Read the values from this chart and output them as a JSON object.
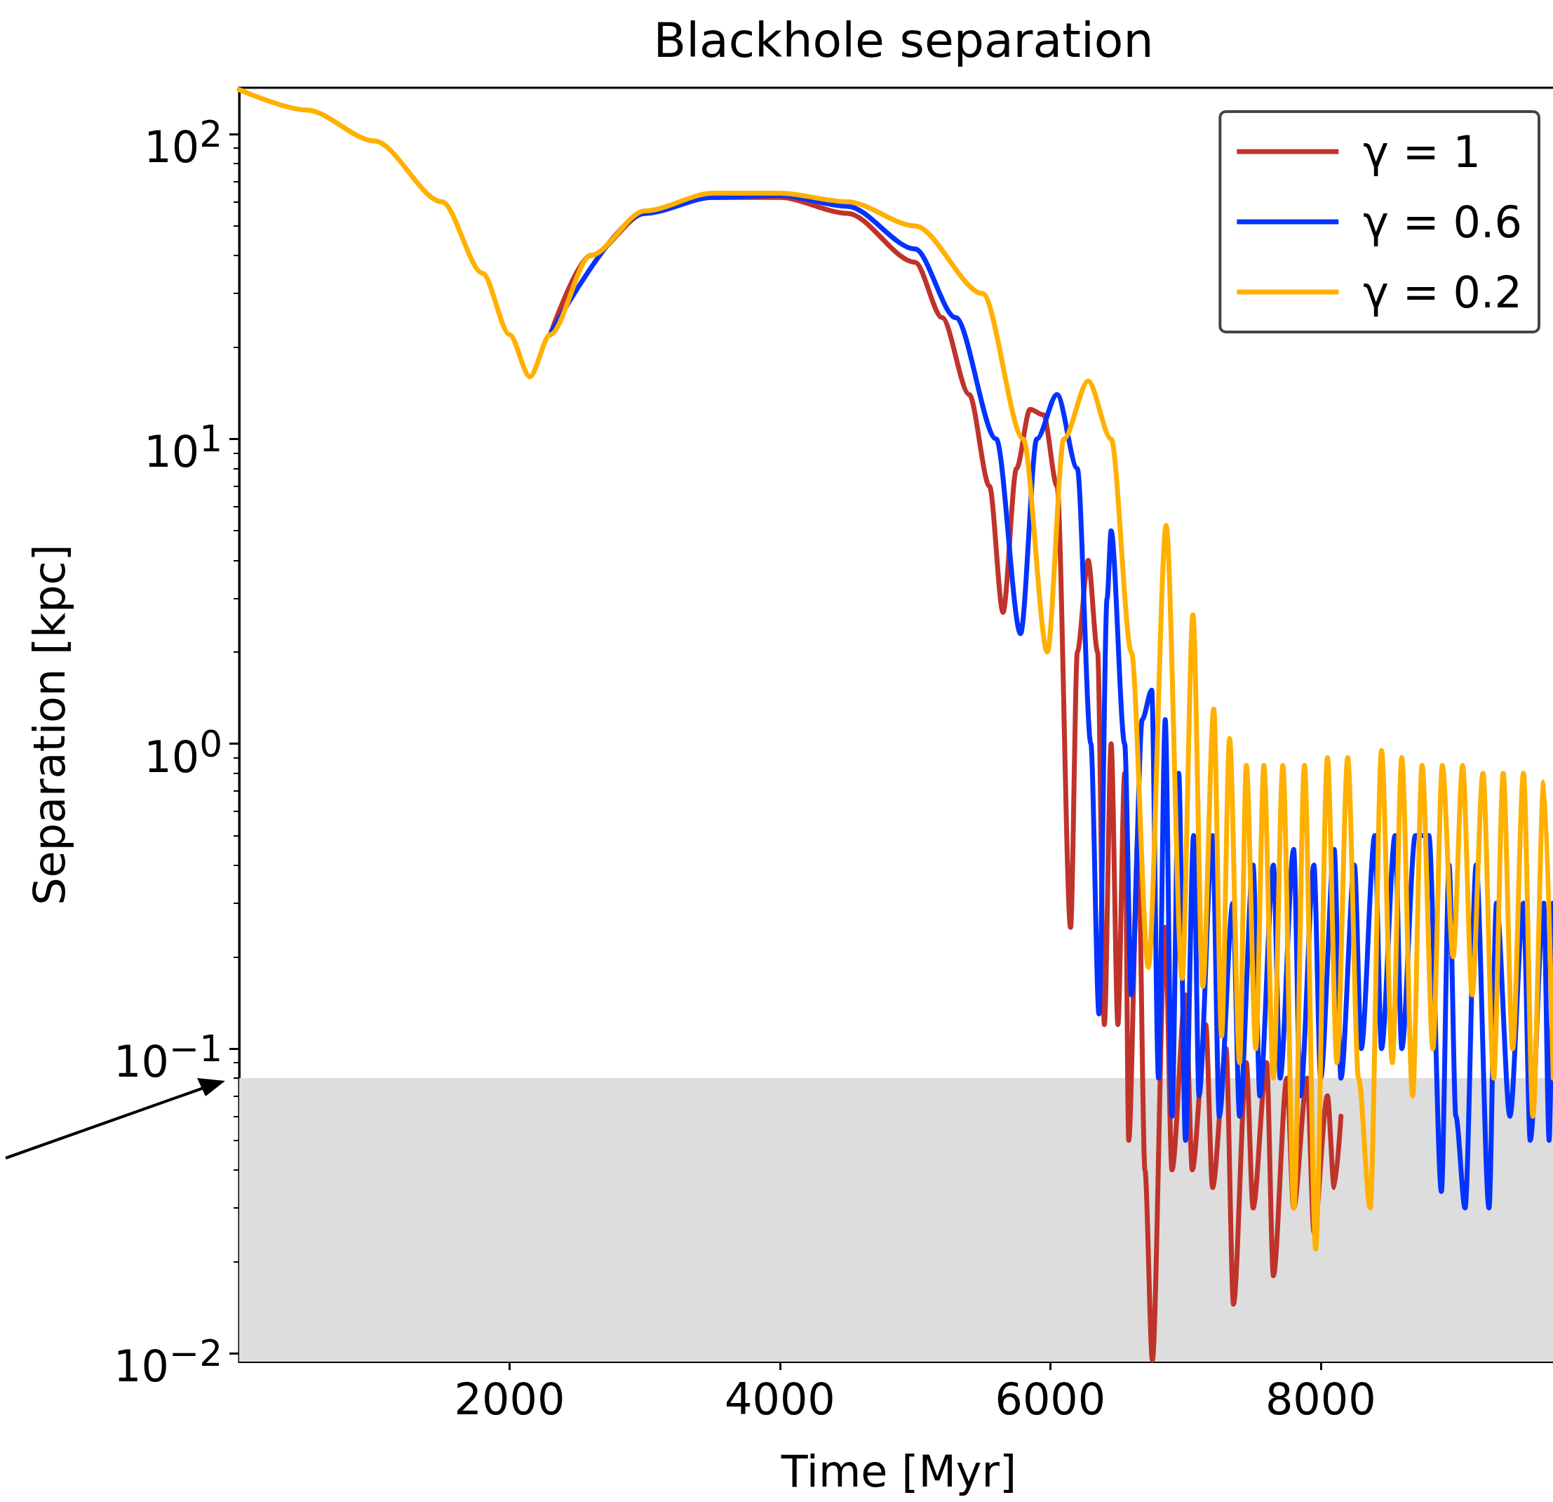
{
  "chart_data": {
    "type": "line",
    "title": "Blackhole separation",
    "xlabel": "Time [Myr]",
    "ylabel": "Separation [kpc]",
    "log": "y",
    "grid": false,
    "legend": "top right",
    "marker": "none",
    "line_style": "solid",
    "xlim": [
      0,
      9760
    ],
    "xticks": [
      2000,
      4000,
      6000,
      8000
    ],
    "ylim": [
      0.0094,
      142
    ],
    "yticks": [
      {
        "value": 0.01,
        "label": "10$^{−2}$"
      },
      {
        "value": 0.1,
        "label": "10$^{−1}$"
      },
      {
        "value": 1,
        "label": "10$^{0}$"
      },
      {
        "value": 10,
        "label": "10$^{1}$"
      },
      {
        "value": 100,
        "label": "10$^{2}$"
      }
    ],
    "bands": [
      {
        "axis": "y",
        "from": 0.0094,
        "to": 0.08,
        "color": "#dddddd"
      }
    ],
    "series": [
      {
        "name": "γ = 1",
        "color": "#c0332b",
        "x": [
          2300,
          2600,
          3000,
          3500,
          4000,
          4500,
          5000,
          5200,
          5400,
          5550,
          5650,
          5750,
          5850,
          5950,
          6050,
          6150,
          6200,
          6280,
          6350,
          6400,
          6450,
          6500,
          6550,
          6580,
          6650,
          6700,
          6755,
          6850,
          6900,
          7000,
          7050,
          7150,
          7200,
          7300,
          7355,
          7450,
          7500,
          7600,
          7650,
          7750,
          7800,
          7900,
          7950,
          8050,
          8100,
          8150
        ],
        "values": [
          22,
          40,
          55,
          62,
          62,
          55,
          38,
          25,
          14,
          7,
          2.7,
          8,
          12.5,
          12,
          7,
          0.25,
          2,
          4,
          2,
          0.12,
          1,
          0.12,
          0.8,
          0.05,
          0.5,
          0.04,
          0.0095,
          0.25,
          0.04,
          0.15,
          0.04,
          0.12,
          0.035,
          0.1,
          0.0145,
          0.09,
          0.03,
          0.09,
          0.018,
          0.08,
          0.03,
          0.08,
          0.025,
          0.07,
          0.035,
          0.06
        ]
      },
      {
        "name": "γ = 0.6",
        "color": "#0433ff",
        "x": [
          2300,
          3000,
          3500,
          4000,
          4500,
          5000,
          5300,
          5600,
          5780,
          5900,
          6050,
          6200,
          6300,
          6360,
          6420,
          6450,
          6550,
          6600,
          6680,
          6750,
          6800,
          6850,
          6900,
          6950,
          7000,
          7060,
          7100,
          7200,
          7250,
          7350,
          7400,
          7500,
          7550,
          7650,
          7700,
          7800,
          7850,
          7950,
          8000,
          8100,
          8150,
          8250,
          8300,
          8400,
          8450,
          8550,
          8600,
          8700,
          8800,
          8893,
          8950,
          9000,
          9068,
          9150,
          9245,
          9300,
          9400,
          9500,
          9550,
          9650,
          9690,
          9720
        ],
        "values": [
          22,
          55,
          62,
          63,
          58,
          42,
          25,
          10,
          2.3,
          10,
          14,
          8,
          1,
          0.13,
          3,
          5,
          1,
          0.15,
          1.2,
          1.5,
          0.08,
          1.2,
          0.06,
          0.8,
          0.05,
          0.5,
          0.07,
          0.5,
          0.06,
          0.3,
          0.06,
          0.4,
          0.07,
          0.4,
          0.08,
          0.45,
          0.07,
          0.4,
          0.08,
          0.45,
          0.08,
          0.4,
          0.1,
          0.5,
          0.1,
          0.5,
          0.1,
          0.5,
          0.5,
          0.034,
          0.4,
          0.06,
          0.03,
          0.4,
          0.03,
          0.3,
          0.06,
          0.3,
          0.05,
          0.3,
          0.05,
          0.3
        ]
      },
      {
        "name": "γ = 0.2",
        "color": "#ffb000",
        "x": [
          0,
          500,
          1000,
          1500,
          1800,
          2000,
          2150,
          2300,
          2600,
          3000,
          3500,
          4000,
          4500,
          5000,
          5500,
          5800,
          5978,
          6100,
          6280,
          6450,
          6600,
          6725,
          6857,
          6975,
          7055,
          7128,
          7209,
          7267,
          7326,
          7400,
          7450,
          7520,
          7580,
          7650,
          7720,
          7802,
          7880,
          7963,
          8050,
          8120,
          8200,
          8280,
          8366,
          8450,
          8530,
          8600,
          8680,
          8750,
          8830,
          8900,
          8980,
          9050,
          9120,
          9200,
          9280,
          9350,
          9420,
          9500,
          9570,
          9650,
          9720
        ],
        "values": [
          140,
          120,
          95,
          60,
          35,
          22,
          16,
          22,
          40,
          56,
          64,
          64,
          60,
          50,
          30,
          10,
          2,
          10,
          15.5,
          10,
          2,
          0.185,
          5.2,
          0.17,
          2.65,
          0.16,
          1.3,
          0.11,
          1.04,
          0.09,
          0.85,
          0.1,
          0.85,
          0.08,
          0.85,
          0.03,
          0.85,
          0.022,
          0.9,
          0.09,
          0.9,
          0.08,
          0.03,
          0.95,
          0.09,
          0.9,
          0.07,
          0.85,
          0.1,
          0.85,
          0.2,
          0.85,
          0.15,
          0.8,
          0.08,
          0.8,
          0.1,
          0.8,
          0.06,
          0.75,
          0.08
        ]
      }
    ]
  }
}
